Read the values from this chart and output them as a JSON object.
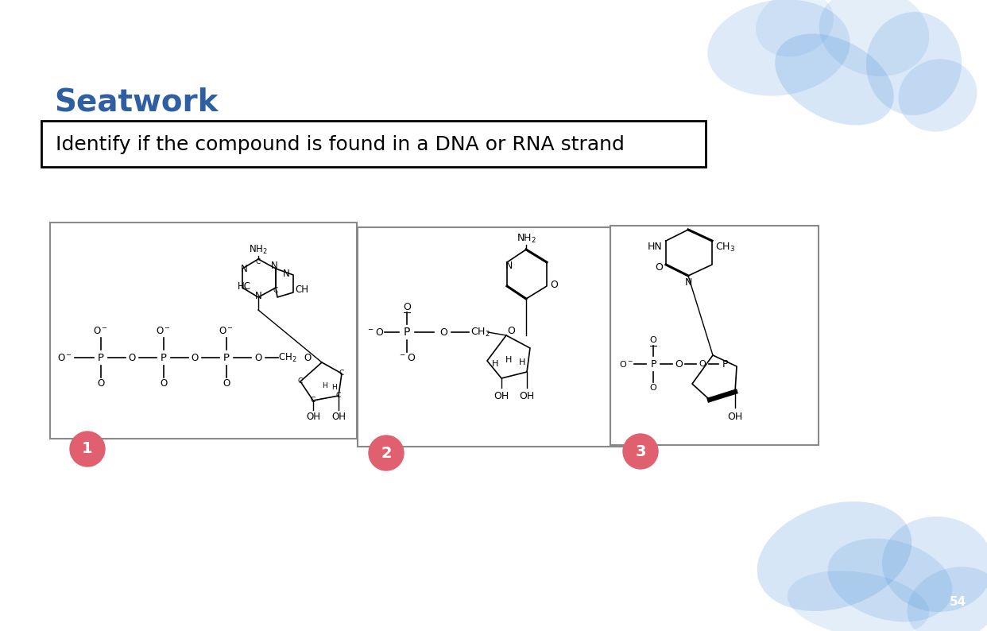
{
  "title": "Seatwork",
  "subtitle": "Identify if the compound is found in a DNA or RNA strand",
  "title_color": "#2E5FA3",
  "title_fontsize": 28,
  "subtitle_fontsize": 18,
  "background_color": "#ffffff",
  "watercolor_color": "#4a90d9",
  "box1_label": "1",
  "box2_label": "2",
  "box3_label": "3",
  "label_color": "#e06070"
}
